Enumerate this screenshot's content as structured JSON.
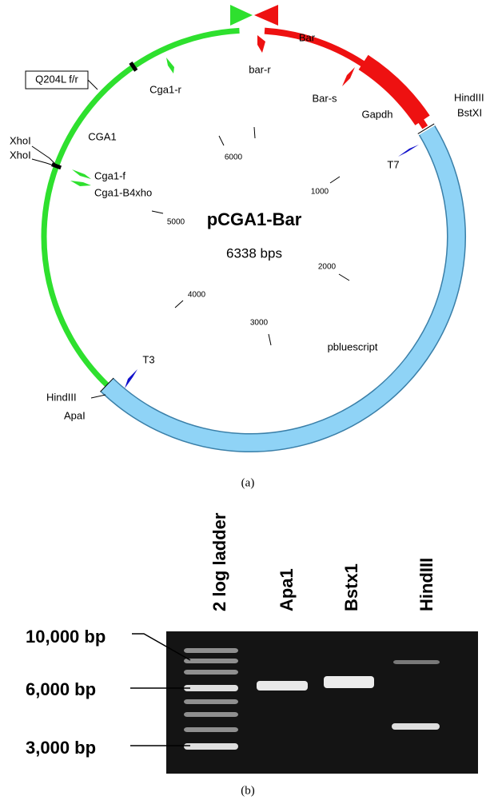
{
  "plasmid_map": {
    "name": "pCGA1-Bar",
    "size": "6338 bps",
    "features": [
      "Bar",
      "bar-r",
      "Cga1-r",
      "Bar-s",
      "Gapdh",
      "HindIII",
      "BstXI",
      "Q204L f/r",
      "CGA1",
      "XhoI",
      "XhoI",
      "Cga1-f",
      "Cga1-B4xho",
      "T7",
      "pbluescript",
      "T3",
      "HindIII",
      "ApaI"
    ],
    "scale_labels": [
      "1000",
      "2000",
      "3000",
      "4000",
      "5000",
      "6000"
    ],
    "caption": "(a)"
  },
  "gel": {
    "lanes": [
      "2 log ladder",
      "Apa1",
      "Bstx1",
      "HindIII"
    ],
    "size_markers": [
      "10,000 bp",
      "6,000 bp",
      "3,000 bp"
    ],
    "caption": "(b)"
  }
}
